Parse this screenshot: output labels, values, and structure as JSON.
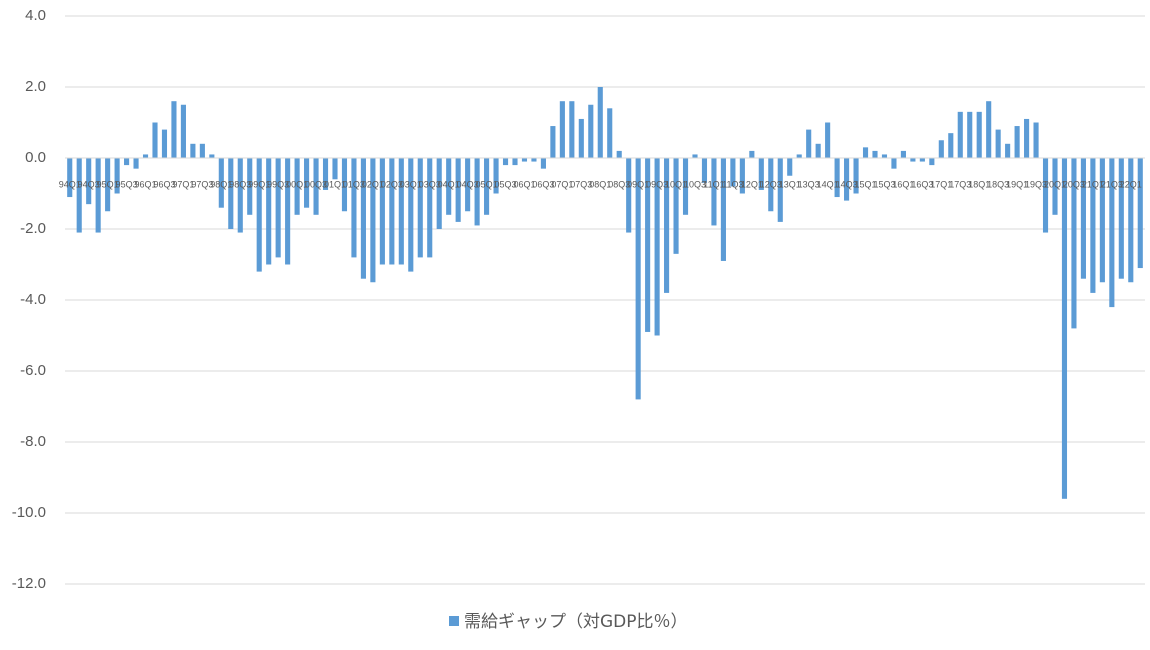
{
  "chart_data": {
    "type": "bar",
    "categories": [
      "94Q1",
      null,
      "94Q3",
      null,
      "95Q1",
      null,
      "95Q3",
      null,
      "96Q1",
      null,
      "96Q3",
      null,
      "97Q1",
      null,
      "97Q3",
      null,
      "98Q1",
      null,
      "98Q3",
      null,
      "99Q1",
      null,
      "99Q3",
      null,
      "00Q1",
      null,
      "00Q3",
      null,
      "01Q1",
      null,
      "01Q3",
      null,
      "02Q1",
      null,
      "02Q3",
      null,
      "03Q1",
      null,
      "03Q3",
      null,
      "04Q1",
      null,
      "04Q3",
      null,
      "05Q1",
      null,
      "05Q3",
      null,
      "06Q1",
      null,
      "06Q3",
      null,
      "07Q1",
      null,
      "07Q3",
      null,
      "08Q1",
      null,
      "08Q3",
      null,
      "09Q1",
      null,
      "09Q3",
      null,
      "10Q1",
      null,
      "10Q3",
      null,
      "11Q1",
      null,
      "11Q3",
      null,
      "12Q1",
      null,
      "12Q3",
      null,
      "13Q1",
      null,
      "13Q3",
      null,
      "14Q1",
      null,
      "14Q3",
      null,
      "15Q1",
      null,
      "15Q3",
      null,
      "16Q1",
      null,
      "16Q3",
      null,
      "17Q1",
      null,
      "17Q3",
      null,
      "18Q1",
      null,
      "18Q3",
      null,
      "19Q1",
      null,
      "19Q3",
      null,
      "20Q1",
      null,
      "20Q3",
      null,
      "21Q1",
      null,
      "21Q3",
      null,
      "22Q1",
      null
    ],
    "series": [
      {
        "name": "需給ギャップ（対GDP比％）",
        "color": "#5b9bd5",
        "values": [
          -1.1,
          -2.1,
          -1.3,
          -2.1,
          -1.5,
          -1.0,
          -0.2,
          -0.3,
          0.1,
          1.0,
          0.8,
          1.6,
          1.5,
          0.4,
          0.4,
          0.1,
          -1.4,
          -2.0,
          -2.1,
          -1.6,
          -3.2,
          -3.0,
          -2.8,
          -3.0,
          -1.6,
          -1.4,
          -1.6,
          -0.9,
          -0.6,
          -1.5,
          -2.8,
          -3.4,
          -3.5,
          -3.0,
          -3.0,
          -3.0,
          -3.2,
          -2.8,
          -2.8,
          -2.0,
          -1.6,
          -1.8,
          -1.5,
          -1.9,
          -1.6,
          -1.0,
          -0.2,
          -0.2,
          -0.1,
          -0.1,
          -0.3,
          0.9,
          1.6,
          1.6,
          1.1,
          1.5,
          2.0,
          1.4,
          0.2,
          -2.1,
          -6.8,
          -4.9,
          -5.0,
          -3.8,
          -2.7,
          -1.6,
          0.1,
          -0.7,
          -1.9,
          -2.9,
          -0.8,
          -1.0,
          0.2,
          -0.9,
          -1.5,
          -1.8,
          -0.5,
          0.1,
          0.8,
          0.4,
          1.0,
          -1.1,
          -1.2,
          -1.0,
          0.3,
          0.2,
          0.1,
          -0.3,
          0.2,
          -0.1,
          -0.1,
          -0.2,
          0.5,
          0.7,
          1.3,
          1.3,
          1.3,
          1.6,
          0.8,
          0.4,
          0.9,
          1.1,
          1.0,
          -2.1,
          -1.6,
          -9.6,
          -4.8,
          -3.4,
          -3.8,
          -3.5,
          -4.2,
          -3.4,
          -3.5,
          -3.1
        ]
      }
    ],
    "ylim": [
      -12,
      4
    ],
    "yticks": [
      {
        "value": -12,
        "label": "-12.0"
      },
      {
        "value": -10,
        "label": "-10.0"
      },
      {
        "value": -8,
        "label": "-8.0"
      },
      {
        "value": -6,
        "label": "-6.0"
      },
      {
        "value": -4,
        "label": "-4.0"
      },
      {
        "value": -2,
        "label": "-2.0"
      },
      {
        "value": 0,
        "label": "0.0"
      },
      {
        "value": 2,
        "label": "2.0"
      },
      {
        "value": 4,
        "label": "4.0"
      }
    ],
    "grid": true,
    "legend": "bottom"
  }
}
